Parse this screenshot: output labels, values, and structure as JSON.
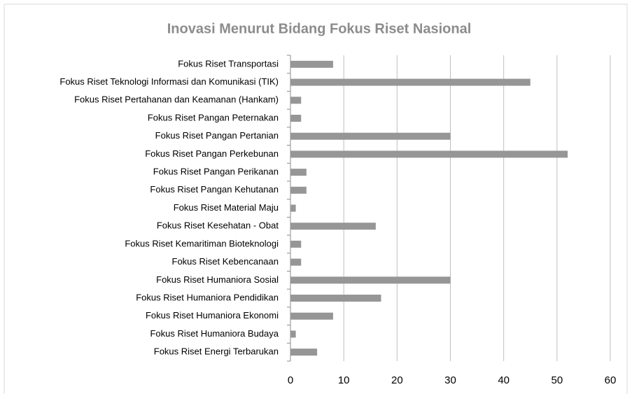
{
  "chart_data": {
    "type": "barh",
    "title": "Inovasi Menurut Bidang Fokus Riset Nasional",
    "categories": [
      "Fokus Riset Transportasi",
      "Fokus Riset Teknologi Informasi dan Komunikasi (TIK)",
      "Fokus Riset Pertahanan dan Keamanan (Hankam)",
      "Fokus Riset Pangan Peternakan",
      "Fokus Riset Pangan Pertanian",
      "Fokus Riset Pangan Perkebunan",
      "Fokus Riset Pangan Perikanan",
      "Fokus Riset Pangan Kehutanan",
      "Fokus Riset Material Maju",
      "Fokus Riset Kesehatan - Obat",
      "Fokus Riset Kemaritiman Bioteknologi",
      "Fokus Riset Kebencanaan",
      "Fokus Riset Humaniora Sosial",
      "Fokus Riset Humaniora Pendidikan",
      "Fokus Riset Humaniora Ekonomi",
      "Fokus Riset Humaniora Budaya",
      "Fokus Riset Energi Terbarukan"
    ],
    "values": [
      8,
      45,
      2,
      2,
      30,
      52,
      3,
      3,
      1,
      16,
      2,
      2,
      30,
      17,
      8,
      1,
      5
    ],
    "color": "#969696",
    "xlim": [
      0,
      60
    ],
    "xticks": [
      0,
      10,
      20,
      30,
      40,
      50,
      60
    ],
    "grid": true
  }
}
